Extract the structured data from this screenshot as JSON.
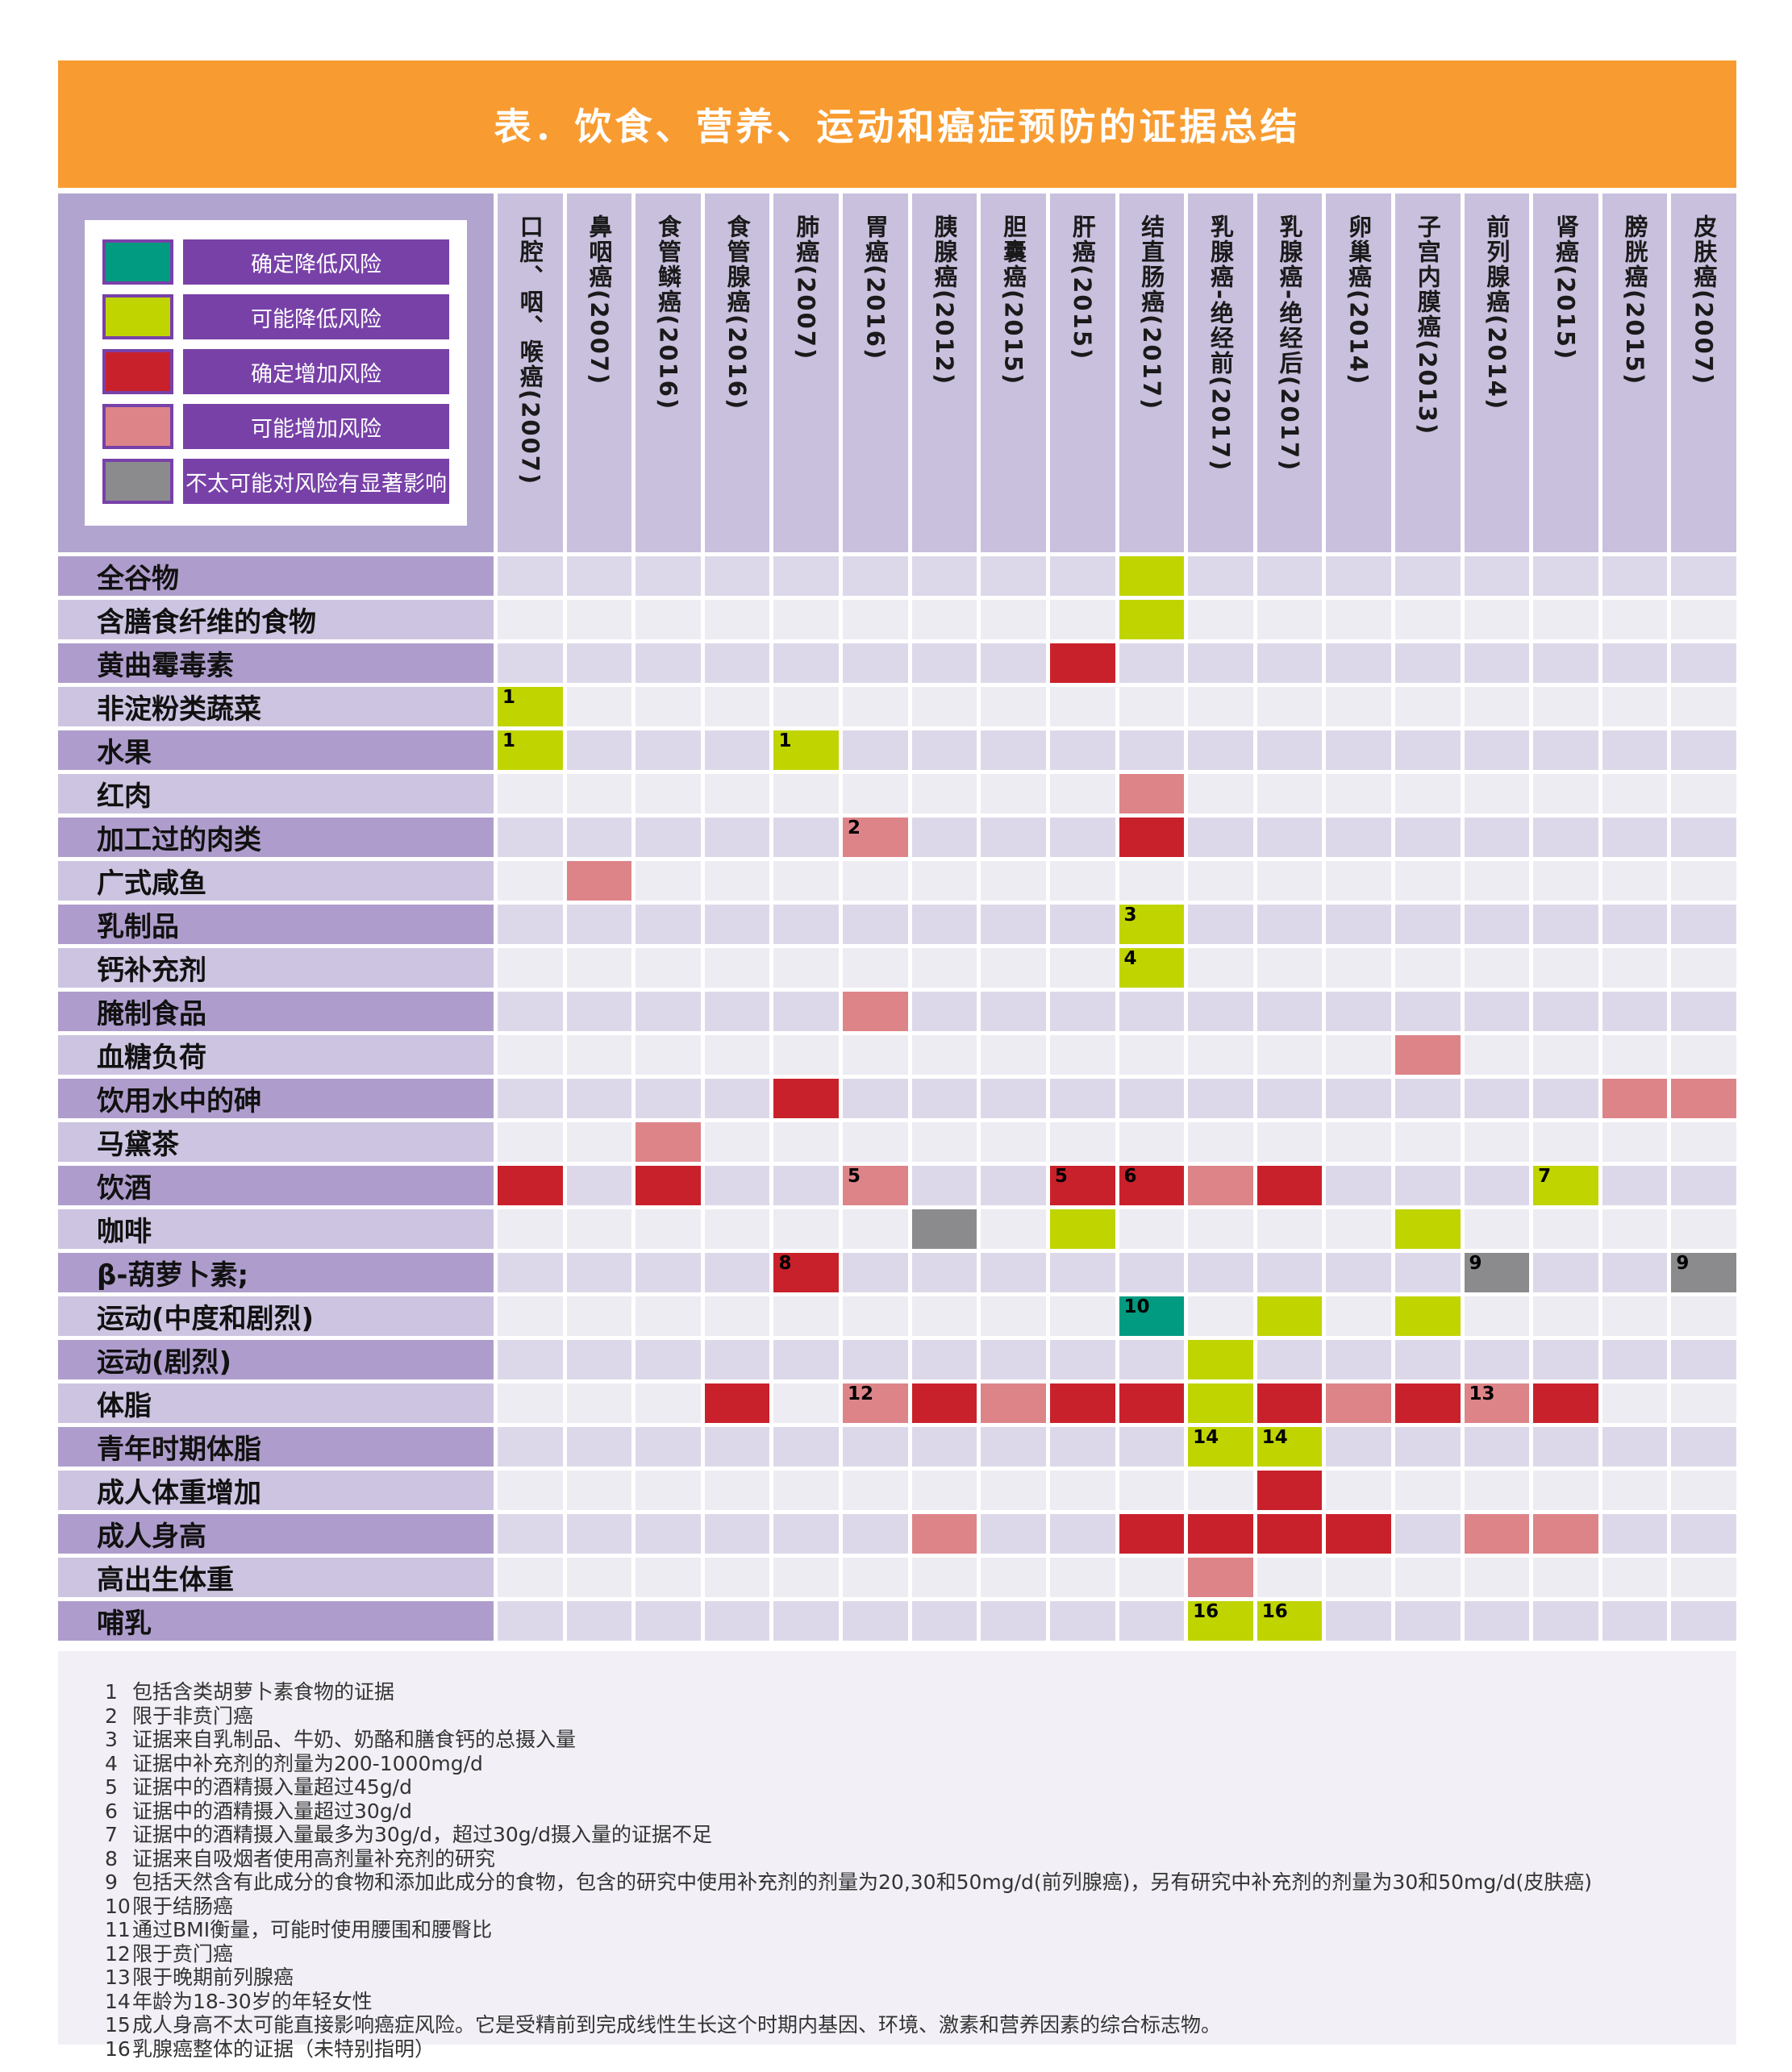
{
  "title": "表．饮食、营养、运动和癌症预防的证据总结",
  "legend": {
    "items": [
      {
        "level": "convincing-decrease",
        "label": "确定降低风险",
        "color": "#009B80"
      },
      {
        "level": "probable-decrease",
        "label": "可能降低风险",
        "color": "#C0D400"
      },
      {
        "level": "convincing-increase",
        "label": "确定增加风险",
        "color": "#C9212B"
      },
      {
        "level": "probable-increase",
        "label": "可能增加风险",
        "color": "#DD8489"
      },
      {
        "level": "unlikely",
        "label": "不太可能对风险有显著影响",
        "color": "#8B8B8D"
      }
    ]
  },
  "chart_data": {
    "type": "heatmap",
    "columns": [
      "口腔、咽、喉癌(2007)",
      "鼻咽癌(2007)",
      "食管鳞癌(2016)",
      "食管腺癌(2016)",
      "肺癌(2007)",
      "胃癌(2016)",
      "胰腺癌(2012)",
      "胆囊癌(2015)",
      "肝癌(2015)",
      "结直肠癌(2017)",
      "乳腺癌-绝经前(2017)",
      "乳腺癌-绝经后(2017)",
      "卵巢癌(2014)",
      "子宫内膜癌(2013)",
      "前列腺癌(2014)",
      "肾癌(2015)",
      "膀胱癌(2015)",
      "皮肤癌(2007)"
    ],
    "rows": [
      "全谷物",
      "含膳食纤维的食物",
      "黄曲霉毒素",
      "非淀粉类蔬菜",
      "水果",
      "红肉",
      "加工过的肉类",
      "广式咸鱼",
      "乳制品",
      "钙补充剂",
      "腌制食品",
      "血糖负荷",
      "饮用水中的砷",
      "马黛茶",
      "饮酒",
      "咖啡",
      "β-葫萝卜素;",
      "运动(中度和剧烈)",
      "运动(剧烈)",
      "体脂",
      "青年时期体脂",
      "成人体重增加",
      "成人身高",
      "高出生体重",
      "哺乳"
    ],
    "cells": [
      {
        "row": 0,
        "col": 9,
        "level": "probable-decrease"
      },
      {
        "row": 1,
        "col": 9,
        "level": "probable-decrease"
      },
      {
        "row": 2,
        "col": 8,
        "level": "convincing-increase"
      },
      {
        "row": 3,
        "col": 0,
        "level": "probable-decrease",
        "note": "1"
      },
      {
        "row": 4,
        "col": 0,
        "level": "probable-decrease",
        "note": "1"
      },
      {
        "row": 4,
        "col": 4,
        "level": "probable-decrease",
        "note": "1"
      },
      {
        "row": 5,
        "col": 9,
        "level": "probable-increase"
      },
      {
        "row": 6,
        "col": 5,
        "level": "probable-increase",
        "note": "2"
      },
      {
        "row": 6,
        "col": 9,
        "level": "convincing-increase"
      },
      {
        "row": 7,
        "col": 1,
        "level": "probable-increase"
      },
      {
        "row": 8,
        "col": 9,
        "level": "probable-decrease",
        "note": "3"
      },
      {
        "row": 9,
        "col": 9,
        "level": "probable-decrease",
        "note": "4"
      },
      {
        "row": 10,
        "col": 5,
        "level": "probable-increase"
      },
      {
        "row": 11,
        "col": 13,
        "level": "probable-increase"
      },
      {
        "row": 12,
        "col": 4,
        "level": "convincing-increase"
      },
      {
        "row": 12,
        "col": 16,
        "level": "probable-increase"
      },
      {
        "row": 12,
        "col": 17,
        "level": "probable-increase"
      },
      {
        "row": 13,
        "col": 2,
        "level": "probable-increase"
      },
      {
        "row": 14,
        "col": 0,
        "level": "convincing-increase"
      },
      {
        "row": 14,
        "col": 2,
        "level": "convincing-increase"
      },
      {
        "row": 14,
        "col": 5,
        "level": "probable-increase",
        "note": "5"
      },
      {
        "row": 14,
        "col": 8,
        "level": "convincing-increase",
        "note": "5"
      },
      {
        "row": 14,
        "col": 9,
        "level": "convincing-increase",
        "note": "6"
      },
      {
        "row": 14,
        "col": 10,
        "level": "probable-increase"
      },
      {
        "row": 14,
        "col": 11,
        "level": "convincing-increase"
      },
      {
        "row": 14,
        "col": 15,
        "level": "probable-decrease",
        "note": "7"
      },
      {
        "row": 15,
        "col": 6,
        "level": "unlikely"
      },
      {
        "row": 15,
        "col": 8,
        "level": "probable-decrease"
      },
      {
        "row": 15,
        "col": 13,
        "level": "probable-decrease"
      },
      {
        "row": 16,
        "col": 4,
        "level": "convincing-increase",
        "note": "8"
      },
      {
        "row": 16,
        "col": 14,
        "level": "unlikely",
        "note": "9"
      },
      {
        "row": 16,
        "col": 17,
        "level": "unlikely",
        "note": "9"
      },
      {
        "row": 17,
        "col": 9,
        "level": "convincing-decrease",
        "note": "10"
      },
      {
        "row": 17,
        "col": 11,
        "level": "probable-decrease"
      },
      {
        "row": 17,
        "col": 13,
        "level": "probable-decrease"
      },
      {
        "row": 18,
        "col": 10,
        "level": "probable-decrease"
      },
      {
        "row": 19,
        "col": 3,
        "level": "convincing-increase"
      },
      {
        "row": 19,
        "col": 5,
        "level": "probable-increase",
        "note": "12"
      },
      {
        "row": 19,
        "col": 6,
        "level": "convincing-increase"
      },
      {
        "row": 19,
        "col": 7,
        "level": "probable-increase"
      },
      {
        "row": 19,
        "col": 8,
        "level": "convincing-increase"
      },
      {
        "row": 19,
        "col": 9,
        "level": "convincing-increase"
      },
      {
        "row": 19,
        "col": 10,
        "level": "probable-decrease"
      },
      {
        "row": 19,
        "col": 11,
        "level": "convincing-increase"
      },
      {
        "row": 19,
        "col": 12,
        "level": "probable-increase"
      },
      {
        "row": 19,
        "col": 13,
        "level": "convincing-increase"
      },
      {
        "row": 19,
        "col": 14,
        "level": "probable-increase",
        "note": "13"
      },
      {
        "row": 19,
        "col": 15,
        "level": "convincing-increase"
      },
      {
        "row": 20,
        "col": 10,
        "level": "probable-decrease",
        "note": "14"
      },
      {
        "row": 20,
        "col": 11,
        "level": "probable-decrease",
        "note": "14"
      },
      {
        "row": 21,
        "col": 11,
        "level": "convincing-increase"
      },
      {
        "row": 22,
        "col": 6,
        "level": "probable-increase"
      },
      {
        "row": 22,
        "col": 9,
        "level": "convincing-increase"
      },
      {
        "row": 22,
        "col": 10,
        "level": "convincing-increase"
      },
      {
        "row": 22,
        "col": 11,
        "level": "convincing-increase"
      },
      {
        "row": 22,
        "col": 12,
        "level": "convincing-increase"
      },
      {
        "row": 22,
        "col": 14,
        "level": "probable-increase"
      },
      {
        "row": 22,
        "col": 15,
        "level": "probable-increase"
      },
      {
        "row": 23,
        "col": 10,
        "level": "probable-increase"
      },
      {
        "row": 24,
        "col": 10,
        "level": "probable-decrease",
        "note": "16"
      },
      {
        "row": 24,
        "col": 11,
        "level": "probable-decrease",
        "note": "16"
      }
    ]
  },
  "footnotes": [
    {
      "num": "1",
      "text": "包括含类胡萝卜素食物的证据"
    },
    {
      "num": "2",
      "text": "限于非贲门癌"
    },
    {
      "num": "3",
      "text": "证据来自乳制品、牛奶、奶酪和膳食钙的总摄入量"
    },
    {
      "num": "4",
      "text": "证据中补充剂的剂量为200-1000mg/d"
    },
    {
      "num": "5",
      "text": "证据中的酒精摄入量超过45g/d"
    },
    {
      "num": "6",
      "text": "证据中的酒精摄入量超过30g/d"
    },
    {
      "num": "7",
      "text": "证据中的酒精摄入量最多为30g/d，超过30g/d摄入量的证据不足"
    },
    {
      "num": "8",
      "text": "证据来自吸烟者使用高剂量补充剂的研究"
    },
    {
      "num": "9",
      "text": "包括天然含有此成分的食物和添加此成分的食物，包含的研究中使用补充剂的剂量为20,30和50mg/d(前列腺癌)，另有研究中补充剂的剂量为30和50mg/d(皮肤癌)"
    },
    {
      "num": "10",
      "text": "限于结肠癌"
    },
    {
      "num": "11",
      "text": "通过BMI衡量，可能时使用腰围和腰臀比"
    },
    {
      "num": "12",
      "text": "限于贲门癌"
    },
    {
      "num": "13",
      "text": "限于晚期前列腺癌"
    },
    {
      "num": "14",
      "text": "年龄为18-30岁的年轻女性"
    },
    {
      "num": "15",
      "text": "成人身高不太可能直接影响癌症风险。它是受精前到完成线性生长这个时期内基因、环境、激素和营养因素的综合标志物。"
    },
    {
      "num": "16",
      "text": "乳腺癌整体的证据（未特别指明）"
    }
  ]
}
